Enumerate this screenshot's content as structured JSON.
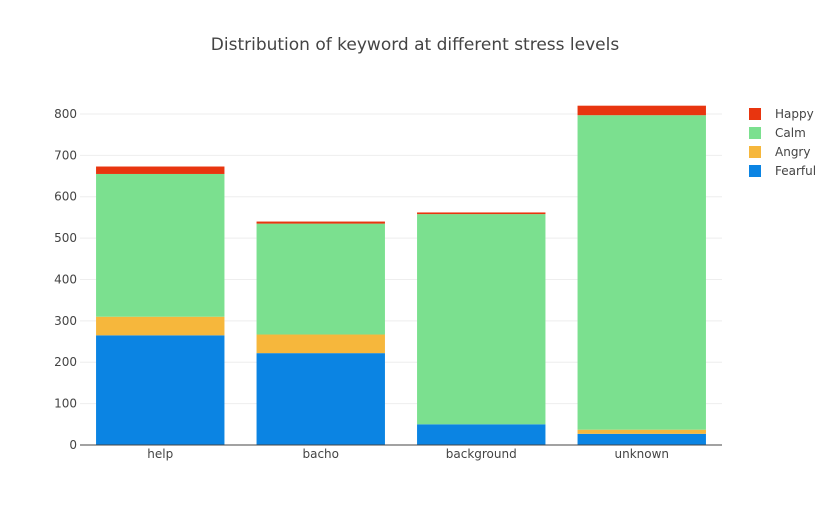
{
  "chart_data": {
    "type": "bar",
    "stacked": true,
    "title": "Distribution of keyword at different stress levels",
    "xlabel": "",
    "ylabel": "",
    "categories": [
      "help",
      "bacho",
      "background",
      "unknown"
    ],
    "ylim": [
      0,
      870
    ],
    "yticks": [
      0,
      100,
      200,
      300,
      400,
      500,
      600,
      700,
      800
    ],
    "grid": true,
    "legend_position": "top-right",
    "series": [
      {
        "name": "Fearful",
        "color": "#0b84e3",
        "values": [
          265,
          222,
          50,
          27
        ]
      },
      {
        "name": "Angry",
        "color": "#f6b73c",
        "values": [
          45,
          45,
          0,
          10
        ]
      },
      {
        "name": "Calm",
        "color": "#7be08f",
        "values": [
          345,
          268,
          508,
          760
        ]
      },
      {
        "name": "Happy",
        "color": "#e8350f",
        "values": [
          18,
          5,
          4,
          23
        ]
      }
    ]
  }
}
